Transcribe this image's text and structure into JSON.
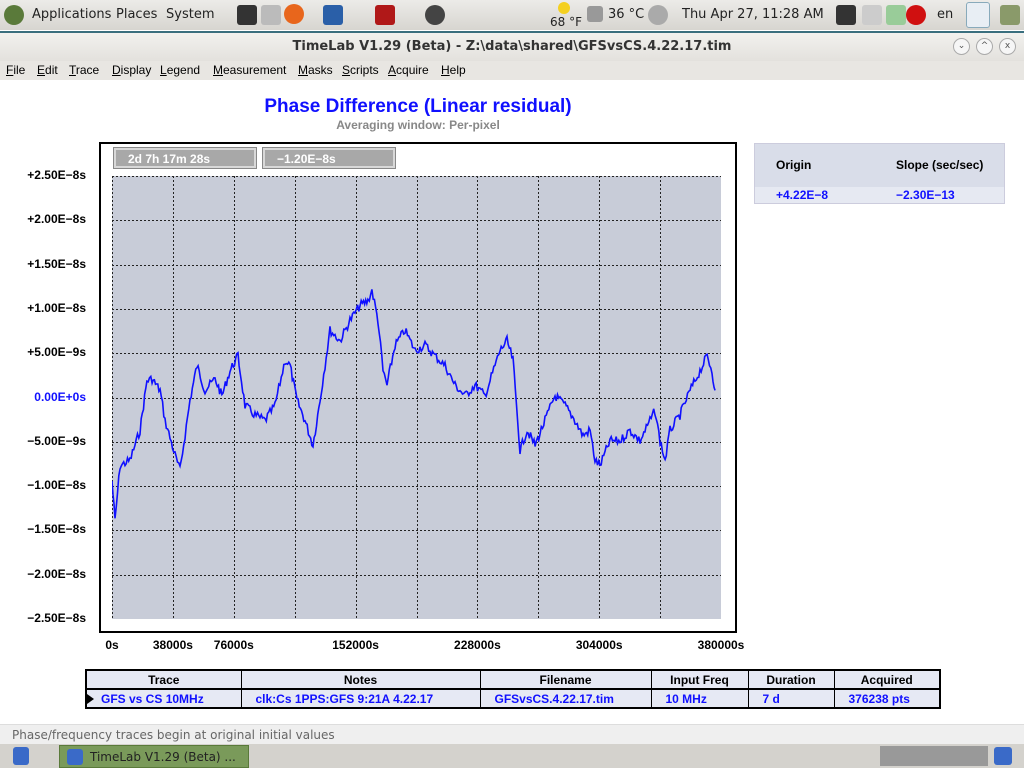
{
  "topbar": {
    "menus": [
      "Applications",
      "Places",
      "System"
    ],
    "weather": "68 °F",
    "cpu_temp": "36 °C",
    "datetime": "Thu Apr 27, 11:28 AM",
    "lang": "en"
  },
  "window": {
    "title": "TimeLab V1.29 (Beta) - Z:\\data\\shared\\GFSvsCS.4.22.17.tim"
  },
  "menu": [
    "File",
    "Edit",
    "Trace",
    "Display",
    "Legend",
    "Measurement",
    "Masks",
    "Scripts",
    "Acquire",
    "Help"
  ],
  "cursor_readouts": {
    "time": "2d 7h 17m 28s",
    "value": "−1.20E−8s"
  },
  "legend": {
    "headers": [
      "Origin",
      "Slope (sec/sec)"
    ],
    "values": [
      "+4.22E−8",
      "−2.30E−13"
    ]
  },
  "table": {
    "headers": [
      "Trace",
      "Notes",
      "Filename",
      "Input Freq",
      "Duration",
      "Acquired"
    ],
    "rows": [
      [
        "GFS vs CS 10MHz",
        "clk:Cs 1PPS:GFS 9:21A 4.22.17",
        "GFSvsCS.4.22.17.tim",
        "10 MHz",
        "7 d",
        "376238 pts"
      ]
    ]
  },
  "status": "Phase/frequency traces begin at original initial values",
  "taskbar": {
    "app": "TimeLab V1.29 (Beta) ..."
  },
  "colors": {
    "trace": "#1010ff",
    "plot_bg": "#c8ccd8",
    "title": "#1010ff"
  },
  "chart_data": {
    "type": "line",
    "title": "Phase Difference (Linear residual)",
    "subtitle": "Averaging window: Per-pixel",
    "xlim": [
      0,
      380000
    ],
    "ylim": [
      -2.5e-08,
      2.5e-08
    ],
    "grid": true,
    "x_ticks": [
      "0s",
      "38000s",
      "76000s",
      "152000s",
      "228000s",
      "304000s",
      "380000s"
    ],
    "x_tick_values": [
      0,
      38000,
      76000,
      152000,
      228000,
      304000,
      380000
    ],
    "y_ticks": [
      "+2.50E−8s",
      "+2.00E−8s",
      "+1.50E−8s",
      "+1.00E−8s",
      "+5.00E−9s",
      "0.00E+0s",
      "−5.00E−9s",
      "−1.00E−8s",
      "−1.50E−8s",
      "−2.00E−8s",
      "−2.50E−8s"
    ],
    "series": [
      {
        "x": [
          0,
          1900,
          5000,
          11200,
          17500,
          21800,
          25000,
          30000,
          33100,
          39300,
          42400,
          48700,
          53000,
          58000,
          64300,
          68600,
          73600,
          78600,
          83000,
          89200,
          95500,
          101700,
          108000,
          111100,
          115400,
          120400,
          125400,
          129800,
          136000,
          142300,
          148500,
          154800,
          159700,
          162200,
          166000,
          169100,
          171600,
          176600,
          182800,
          189100,
          195300,
          201500,
          207800,
          214000,
          220300,
          226500,
          232700,
          235900,
          242100,
          246500,
          250200,
          254600,
          259000,
          264000,
          270200,
          276400,
          282700,
          288900,
          293900,
          298300,
          301400,
          304500,
          310700,
          317000,
          323200,
          329500,
          335700,
          338800,
          342000,
          345100,
          348200,
          354400,
          360700,
          366900,
          371300,
          374400,
          376300
        ],
        "y": [
          -9.4e-09,
          -1.39e-08,
          -7.7e-09,
          -7.1e-09,
          -3.7e-09,
          1.9e-09,
          2.1e-09,
          8e-10,
          -2.6e-09,
          -6.5e-09,
          -8.2e-09,
          -3e-10,
          3.6e-09,
          8e-10,
          2.1e-09,
          2e-10,
          3e-09,
          4.7e-09,
          -9e-10,
          -2e-09,
          -2.6e-09,
          -9e-10,
          4.2e-09,
          3.6e-09,
          -3e-10,
          -2.6e-09,
          -5.4e-09,
          -3e-10,
          7.6e-09,
          6.4e-09,
          8.7e-09,
          1.04e-08,
          1.09e-08,
          1.21e-08,
          8.7e-09,
          3e-09,
          1.4e-09,
          5.9e-09,
          7.6e-09,
          5.3e-09,
          5.9e-09,
          4.7e-09,
          3.6e-09,
          1.4e-09,
          2e-10,
          1.4e-09,
          2e-10,
          1.9e-09,
          5.3e-09,
          6.4e-09,
          4.2e-09,
          -6e-09,
          -3.7e-09,
          -5.4e-09,
          -2.6e-09,
          2e-10,
          -9e-10,
          -2.6e-09,
          -4.3e-09,
          -3.7e-09,
          -7.1e-09,
          -7.7e-09,
          -4.9e-09,
          -4.9e-09,
          -3.7e-09,
          -4.9e-09,
          -2.6e-09,
          -1.5e-09,
          -4.9e-09,
          -7.1e-09,
          -3.7e-09,
          -2e-09,
          8e-10,
          3e-09,
          4.7e-09,
          3e-09,
          8e-10
        ]
      }
    ]
  }
}
